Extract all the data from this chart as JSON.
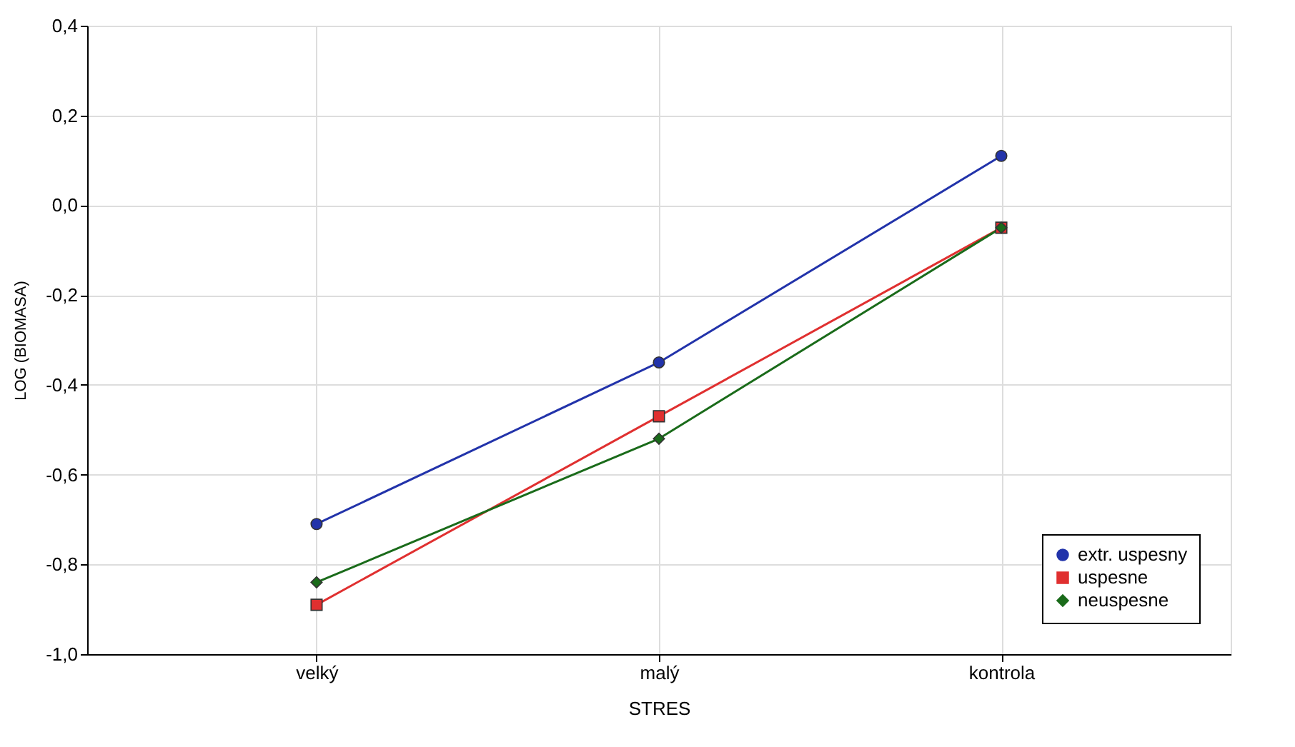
{
  "chart_data": {
    "type": "line",
    "xlabel": "STRES",
    "ylabel": "LOG (BIOMASA)",
    "categories": [
      "velký",
      "malý",
      "kontrola"
    ],
    "series": [
      {
        "name": "extr. uspesny",
        "color": "#2233aa",
        "marker": "circle",
        "values": [
          -0.71,
          -0.35,
          0.11
        ]
      },
      {
        "name": "uspesne",
        "color": "#e03030",
        "marker": "square",
        "values": [
          -0.89,
          -0.47,
          -0.05
        ]
      },
      {
        "name": "neuspesne",
        "color": "#1a6b1a",
        "marker": "diamond",
        "values": [
          -0.84,
          -0.52,
          -0.05
        ]
      }
    ],
    "ylim": [
      -1.0,
      0.4
    ],
    "yticks": [
      {
        "value": -1.0,
        "label": "-1,0"
      },
      {
        "value": -0.8,
        "label": "-0,8"
      },
      {
        "value": -0.6,
        "label": "-0,6"
      },
      {
        "value": -0.4,
        "label": "-0,4"
      },
      {
        "value": -0.2,
        "label": "-0,2"
      },
      {
        "value": 0.0,
        "label": "0,0"
      },
      {
        "value": 0.2,
        "label": "0,2"
      },
      {
        "value": 0.4,
        "label": "0,4"
      }
    ],
    "grid": true,
    "legend": "bottom right",
    "line_style": "solid"
  }
}
